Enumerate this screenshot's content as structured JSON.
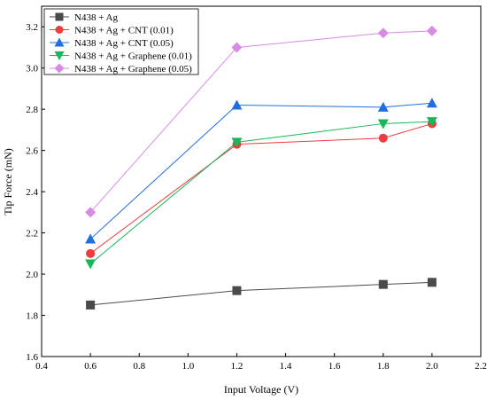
{
  "chart_data": {
    "type": "line",
    "xlabel": "Input Voltage (V)",
    "ylabel": "Tip Force (mN)",
    "xlim": [
      0.4,
      2.2
    ],
    "ylim": [
      1.6,
      3.3
    ],
    "xticks": [
      0.4,
      0.6,
      0.8,
      1.0,
      1.2,
      1.4,
      1.6,
      1.8,
      2.0,
      2.2
    ],
    "yticks": [
      1.6,
      1.8,
      2.0,
      2.2,
      2.4,
      2.6,
      2.8,
      3.0,
      3.2
    ],
    "x_tick_labels": [
      "0.4",
      "0.6",
      "0.8",
      "1.0",
      "1.2",
      "1.4",
      "1.6",
      "1.8",
      "2.0",
      "2.2"
    ],
    "y_tick_labels": [
      "1.6",
      "1.8",
      "2.0",
      "2.2",
      "2.4",
      "2.6",
      "2.8",
      "3.0",
      "3.2"
    ],
    "grid": false,
    "legend_position": "top-left",
    "x": [
      0.6,
      1.2,
      1.8,
      2.0
    ],
    "series": [
      {
        "name": "N438 + Ag",
        "values": [
          1.85,
          1.92,
          1.95,
          1.96
        ],
        "color": "#4a4a4a",
        "marker": "square"
      },
      {
        "name": "N438 + Ag + CNT (0.01)",
        "values": [
          2.1,
          2.63,
          2.66,
          2.73
        ],
        "color": "#f03c3c",
        "marker": "circle"
      },
      {
        "name": "N438 + Ag + CNT (0.05)",
        "values": [
          2.17,
          2.82,
          2.81,
          2.83
        ],
        "color": "#1f6fe0",
        "marker": "triangle-up"
      },
      {
        "name": "N438 + Ag + Graphene (0.01)",
        "values": [
          2.05,
          2.64,
          2.73,
          2.74
        ],
        "color": "#18b85a",
        "marker": "triangle-down"
      },
      {
        "name": "N438 + Ag + Graphene (0.05)",
        "values": [
          2.3,
          3.1,
          3.17,
          3.18
        ],
        "color": "#d98ae6",
        "marker": "diamond"
      }
    ]
  }
}
